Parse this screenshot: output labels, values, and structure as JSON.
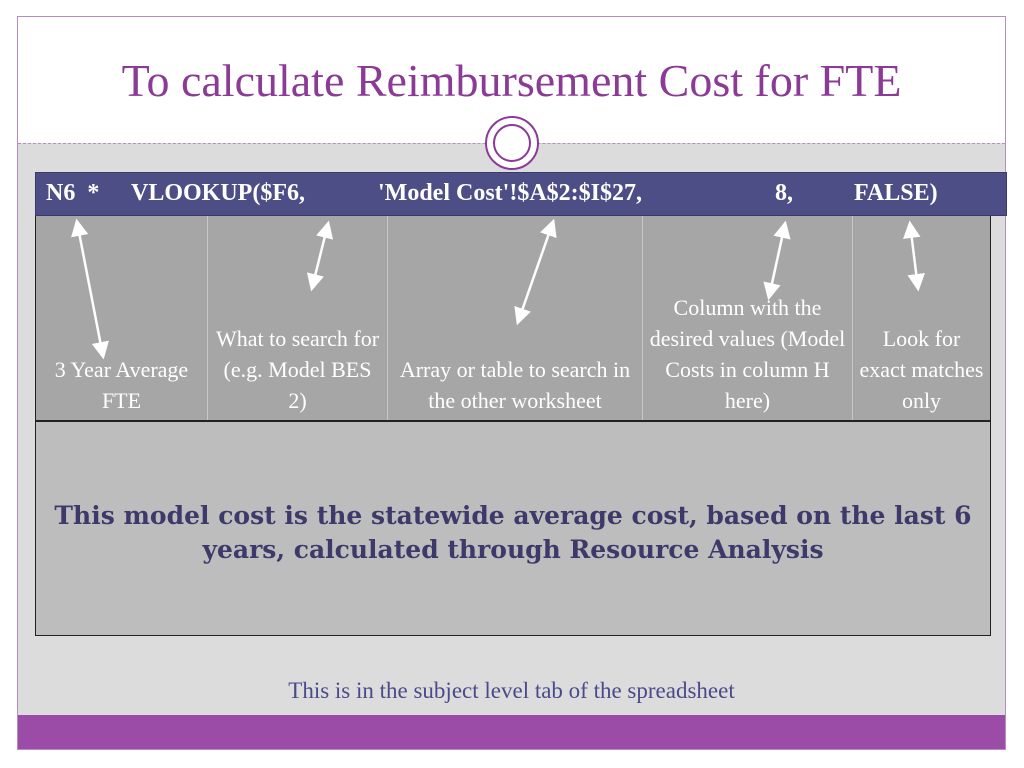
{
  "slide": {
    "title": "To calculate Reimbursement Cost for FTE",
    "formula_parts": [
      "N6  *",
      "VLOOKUP($F6,",
      "'Model Cost'!$A$2:$I$27,",
      "8,",
      "FALSE)"
    ],
    "descriptions": [
      "3 Year Average FTE",
      "What to search for (e.g. Model BES 2)",
      "Array  or table to search in the other worksheet",
      "Column with the desired values (Model Costs in column H here)",
      "Look for exact matches only"
    ],
    "note": "This model cost is the statewide average cost, based on the last 6 years, calculated through Resource Analysis",
    "footer": "This is in the subject level tab of the spreadsheet"
  },
  "colors": {
    "title": "#8b3a96",
    "formula_bar": "#4e4e87",
    "note_text": "#3d3a6b",
    "bottom_bar": "#9a4ca6"
  }
}
